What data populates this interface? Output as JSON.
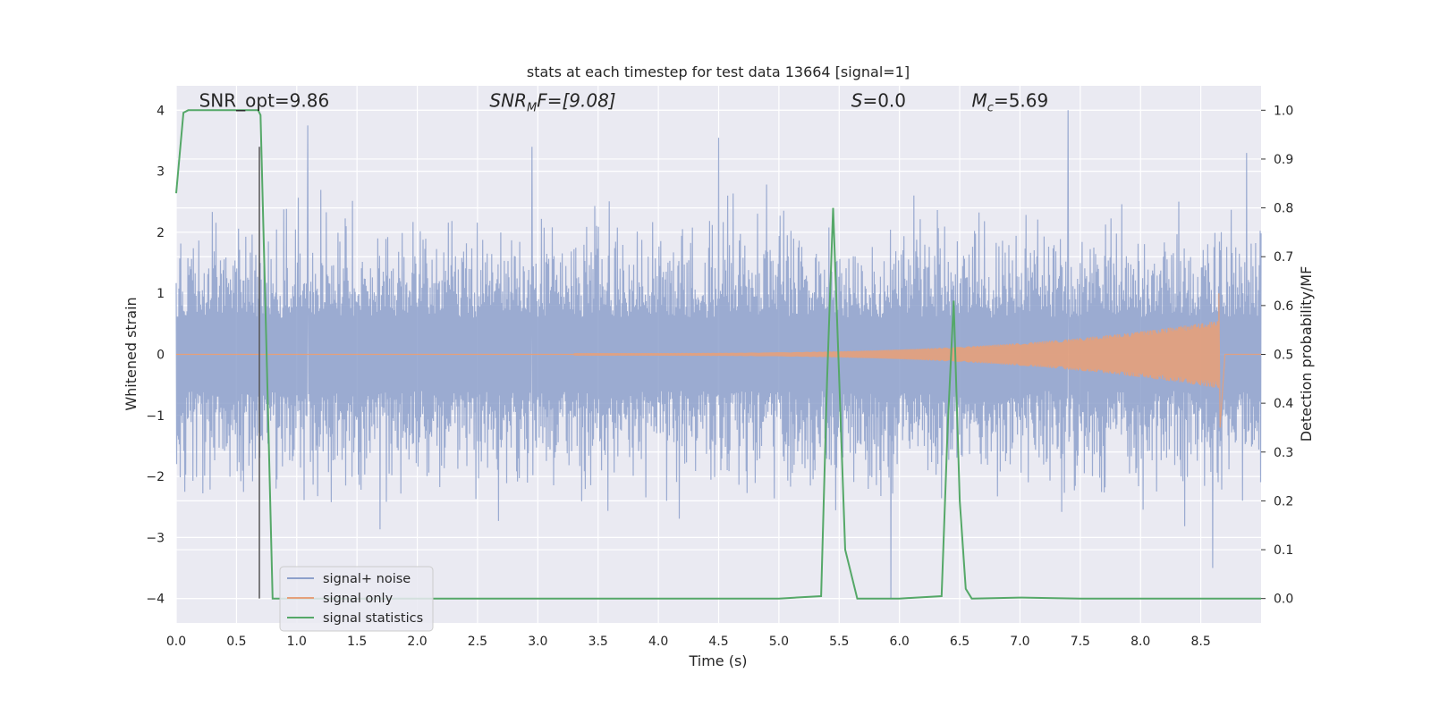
{
  "chart_data": {
    "type": "line",
    "title": "stats at each timestep for test data 13664 [signal=1]",
    "xlabel": "Time (s)",
    "ylabel_left": "Whitened strain",
    "ylabel_right": "Detection probability/MF",
    "xlim": [
      0.0,
      9.0
    ],
    "ylim_left": [
      -4.4,
      4.4
    ],
    "ylim_right": [
      -0.05,
      1.05
    ],
    "x_ticks": [
      "0.0",
      "0.5",
      "1.0",
      "1.5",
      "2.0",
      "2.5",
      "3.0",
      "3.5",
      "4.0",
      "4.5",
      "5.0",
      "5.5",
      "6.0",
      "6.5",
      "7.0",
      "7.5",
      "8.0",
      "8.5"
    ],
    "y_ticks_left": [
      "−4",
      "−3",
      "−2",
      "−1",
      "0",
      "1",
      "2",
      "3",
      "4"
    ],
    "y_ticks_right": [
      "0.0",
      "0.1",
      "0.2",
      "0.3",
      "0.4",
      "0.5",
      "0.6",
      "0.7",
      "0.8",
      "0.9",
      "1.0"
    ],
    "grid": true,
    "legend_position": "lower-left",
    "series": [
      {
        "name": "signal+ noise",
        "axis": "left",
        "color": "#8da0cb",
        "description_values": {
          "typical_envelope": [
            -2.4,
            2.4
          ],
          "peaks": [
            [
              1.09,
              3.75
            ],
            [
              2.95,
              3.4
            ],
            [
              4.5,
              3.55
            ],
            [
              5.93,
              -4.0
            ],
            [
              7.4,
              4.0
            ],
            [
              8.6,
              -3.5
            ],
            [
              8.88,
              3.3
            ]
          ]
        }
      },
      {
        "name": "signal only",
        "axis": "left",
        "color": "#e5a07a",
        "chirp": {
          "t_start": 3.3,
          "t_merger": 8.65,
          "amp_start": 0.02,
          "amp_peak": 1.0
        }
      },
      {
        "name": "signal statistics",
        "axis": "right",
        "color": "#55a868",
        "x": [
          0.0,
          0.06,
          0.1,
          0.2,
          0.4,
          0.6,
          0.68,
          0.7,
          0.75,
          0.8,
          0.9,
          1.5,
          2.0,
          3.0,
          4.0,
          5.0,
          5.35,
          5.4,
          5.45,
          5.5,
          5.55,
          5.65,
          6.0,
          6.35,
          6.4,
          6.45,
          6.5,
          6.55,
          6.6,
          7.0,
          7.5,
          8.0,
          8.5,
          9.0
        ],
        "y": [
          0.83,
          0.995,
          1.0,
          1.0,
          1.0,
          1.0,
          1.0,
          0.99,
          0.5,
          0.0,
          0.0,
          0.0,
          0.0,
          0.0,
          0.0,
          0.0,
          0.005,
          0.45,
          0.8,
          0.45,
          0.1,
          0.0,
          0.0,
          0.005,
          0.35,
          0.61,
          0.2,
          0.02,
          0.0,
          0.002,
          0.0,
          0.0,
          0.0,
          0.0
        ]
      }
    ],
    "vertical_line": {
      "x": 0.69,
      "color": "#555555"
    },
    "annotations": [
      {
        "text": "SNR_opt=9.86",
        "x": 0.19,
        "y": 4.1
      },
      {
        "text": "SNR",
        "sub": "M",
        "text_after": "F=[9.08]",
        "x": 2.6,
        "y": 4.1
      },
      {
        "text": "S",
        "text_after": "=0.0",
        "x": 5.6,
        "y": 4.1
      },
      {
        "text": "M",
        "sub": "c",
        "text_after": "=5.69",
        "x": 6.6,
        "y": 4.1
      }
    ]
  }
}
